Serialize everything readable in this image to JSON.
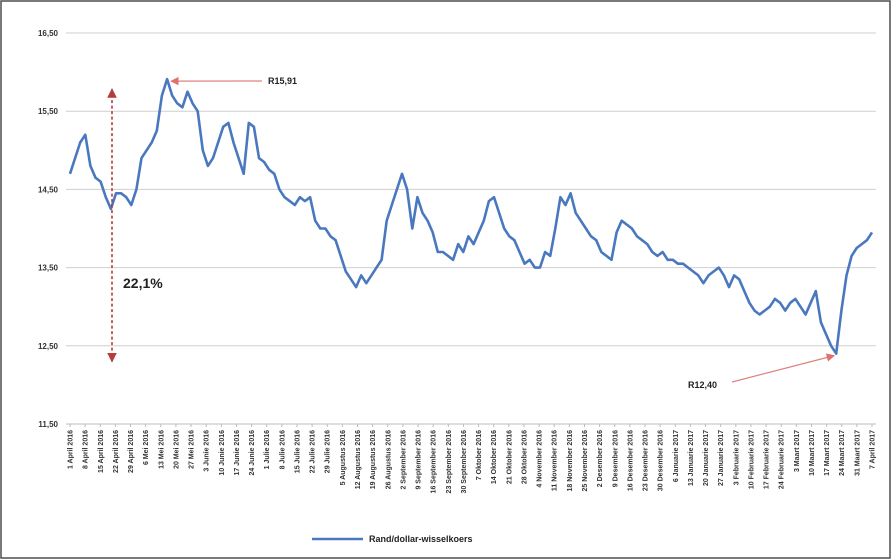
{
  "chart_data": {
    "type": "line",
    "title": "",
    "xlabel": "",
    "ylabel": "",
    "ylim": [
      11.5,
      16.5
    ],
    "y_ticks": [
      "11,50",
      "12,50",
      "13,50",
      "14,50",
      "15,50",
      "16,50"
    ],
    "y_tick_values": [
      11.5,
      12.5,
      13.5,
      14.5,
      15.5,
      16.5
    ],
    "grid": "horizontal",
    "legend": {
      "placement": "bottom-center",
      "label": "Rand/dollar-wisselkoers"
    },
    "x_tick_labels": [
      "1 April 2016",
      "8 April 2016",
      "15 April 2016",
      "22 April 2016",
      "29 April 2016",
      "6 Mei 2016",
      "13 Mei 2016",
      "20 Mei 2016",
      "27 Mei 2016",
      "3 Junie 2016",
      "10 Junie 2016",
      "17 Junie 2016",
      "24 Junie 2016",
      "1 Julie 2016",
      "8 Julie 2016",
      "15 Julie 2016",
      "22 Julie 2016",
      "29 Julie 2016",
      "5 Augustus 2016",
      "12 Augustus 2016",
      "19 Augustus 2016",
      "26 Augustus 2016",
      "2 September 2016",
      "9 September 2016",
      "16 September 2016",
      "23 September 2016",
      "30 September 2016",
      "7 Oktober 2016",
      "14 Oktober 2016",
      "21 Oktober 2016",
      "28 Oktober 2016",
      "4 November 2016",
      "11 November 2016",
      "18 November 2016",
      "25 November 2016",
      "2 Desember 2016",
      "9 Desember 2016",
      "16 Desember 2016",
      "23 Desember 2016",
      "30 Desember 2016",
      "6 Januarie 2017",
      "13 Januarie 2017",
      "20 Januarie 2017",
      "27 Januarie 2017",
      "3 Februarie 2017",
      "10 Februarie 2017",
      "17 Februarie 2017",
      "24 Februarie 2017",
      "3 Maart 2017",
      "10 Maart 2017",
      "17 Maart 2017",
      "24 Maart 2017",
      "31 Maart 2017",
      "7 April 2017"
    ],
    "series": [
      {
        "name": "Rand/dollar-wisselkoers",
        "color": "#4a78bf",
        "values": [
          14.7,
          14.9,
          15.1,
          15.2,
          14.8,
          14.65,
          14.6,
          14.4,
          14.25,
          14.45,
          14.45,
          14.4,
          14.3,
          14.5,
          14.9,
          15.0,
          15.1,
          15.25,
          15.7,
          15.91,
          15.7,
          15.6,
          15.55,
          15.75,
          15.6,
          15.5,
          15.0,
          14.8,
          14.9,
          15.1,
          15.3,
          15.35,
          15.1,
          14.9,
          14.7,
          15.35,
          15.3,
          14.9,
          14.85,
          14.75,
          14.7,
          14.5,
          14.4,
          14.35,
          14.3,
          14.4,
          14.35,
          14.4,
          14.1,
          14.0,
          14.0,
          13.9,
          13.85,
          13.65,
          13.45,
          13.35,
          13.25,
          13.4,
          13.3,
          13.4,
          13.5,
          13.6,
          14.1,
          14.3,
          14.5,
          14.7,
          14.5,
          14.0,
          14.4,
          14.2,
          14.1,
          13.95,
          13.7,
          13.7,
          13.65,
          13.6,
          13.8,
          13.7,
          13.9,
          13.8,
          13.95,
          14.1,
          14.35,
          14.4,
          14.2,
          14.0,
          13.9,
          13.85,
          13.7,
          13.55,
          13.6,
          13.5,
          13.5,
          13.7,
          13.65,
          14.0,
          14.4,
          14.3,
          14.45,
          14.2,
          14.1,
          14.0,
          13.9,
          13.85,
          13.7,
          13.65,
          13.6,
          13.95,
          14.1,
          14.05,
          14.0,
          13.9,
          13.85,
          13.8,
          13.7,
          13.65,
          13.7,
          13.6,
          13.6,
          13.55,
          13.55,
          13.5,
          13.45,
          13.4,
          13.3,
          13.4,
          13.45,
          13.5,
          13.4,
          13.25,
          13.4,
          13.35,
          13.2,
          13.05,
          12.95,
          12.9,
          12.95,
          13.0,
          13.1,
          13.05,
          12.95,
          13.05,
          13.1,
          13.0,
          12.9,
          13.05,
          13.2,
          12.8,
          12.65,
          12.5,
          12.4,
          12.95,
          13.4,
          13.65,
          13.75,
          13.8,
          13.85,
          13.95
        ]
      }
    ],
    "annotations": [
      {
        "text": "R15,91",
        "x_index": 19,
        "value": 15.91
      },
      {
        "text": "R12,40",
        "x_index": 150,
        "value": 12.4
      },
      {
        "text": "22,1%",
        "type": "range",
        "from": 15.91,
        "to": 12.4
      }
    ]
  }
}
